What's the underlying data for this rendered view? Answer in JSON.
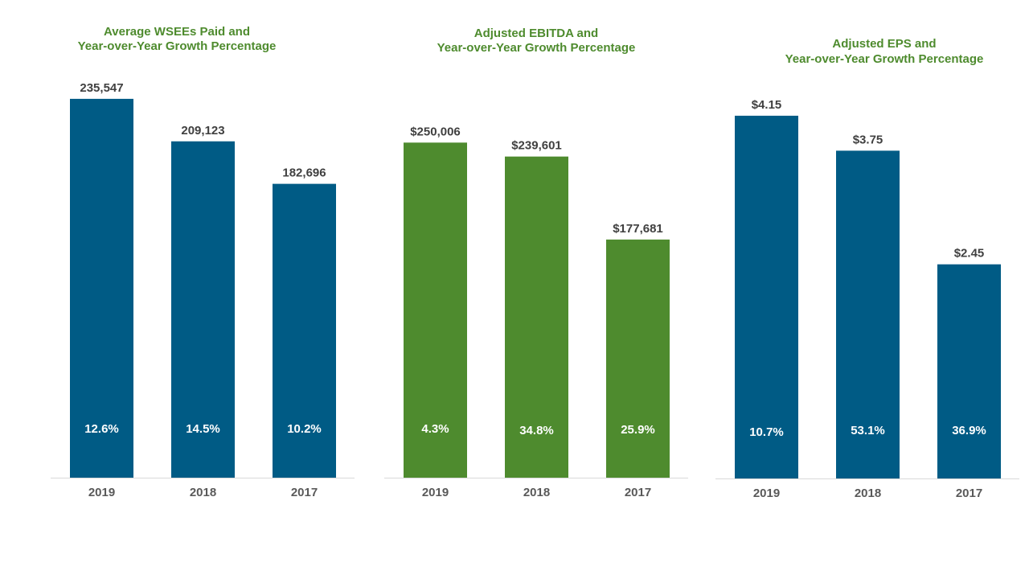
{
  "colors": {
    "title": "#4E8B2E",
    "axis": "#D9D9D9",
    "blue": "#005B85",
    "green": "#4E8B2E"
  },
  "chart_data": [
    {
      "type": "bar",
      "title": [
        "Average WSEEs Paid and",
        "Year-over-Year  Growth Percentage"
      ],
      "categories": [
        "2019",
        "2018",
        "2017"
      ],
      "values": [
        235547,
        209123,
        182696
      ],
      "value_labels": [
        "235,547",
        "209,123",
        "182,696"
      ],
      "growth_labels": [
        "12.6%",
        "14.5%",
        "10.2%"
      ],
      "color": "#005B85",
      "ylim": [
        0,
        250000
      ]
    },
    {
      "type": "bar",
      "title": [
        "Adjusted EBITDA and",
        "Year-over-Year  Growth Percentage"
      ],
      "categories": [
        "2019",
        "2018",
        "2017"
      ],
      "values": [
        250006,
        239601,
        177681
      ],
      "value_labels": [
        "$250,006",
        "$239,601",
        "$177,681"
      ],
      "growth_labels": [
        "4.3%",
        "34.8%",
        "25.9%"
      ],
      "color": "#4E8B2E",
      "ylim": [
        0,
        300000
      ]
    },
    {
      "type": "bar",
      "title": [
        "Adjusted EPS and",
        "Year-over-Year  Growth Percentage"
      ],
      "categories": [
        "2019",
        "2018",
        "2017"
      ],
      "values": [
        4.15,
        3.75,
        2.45
      ],
      "value_labels": [
        "$4.15",
        "$3.75",
        "$2.45"
      ],
      "growth_labels": [
        "10.7%",
        "53.1%",
        "36.9%"
      ],
      "color": "#005B85",
      "ylim": [
        0,
        4.6
      ]
    }
  ]
}
